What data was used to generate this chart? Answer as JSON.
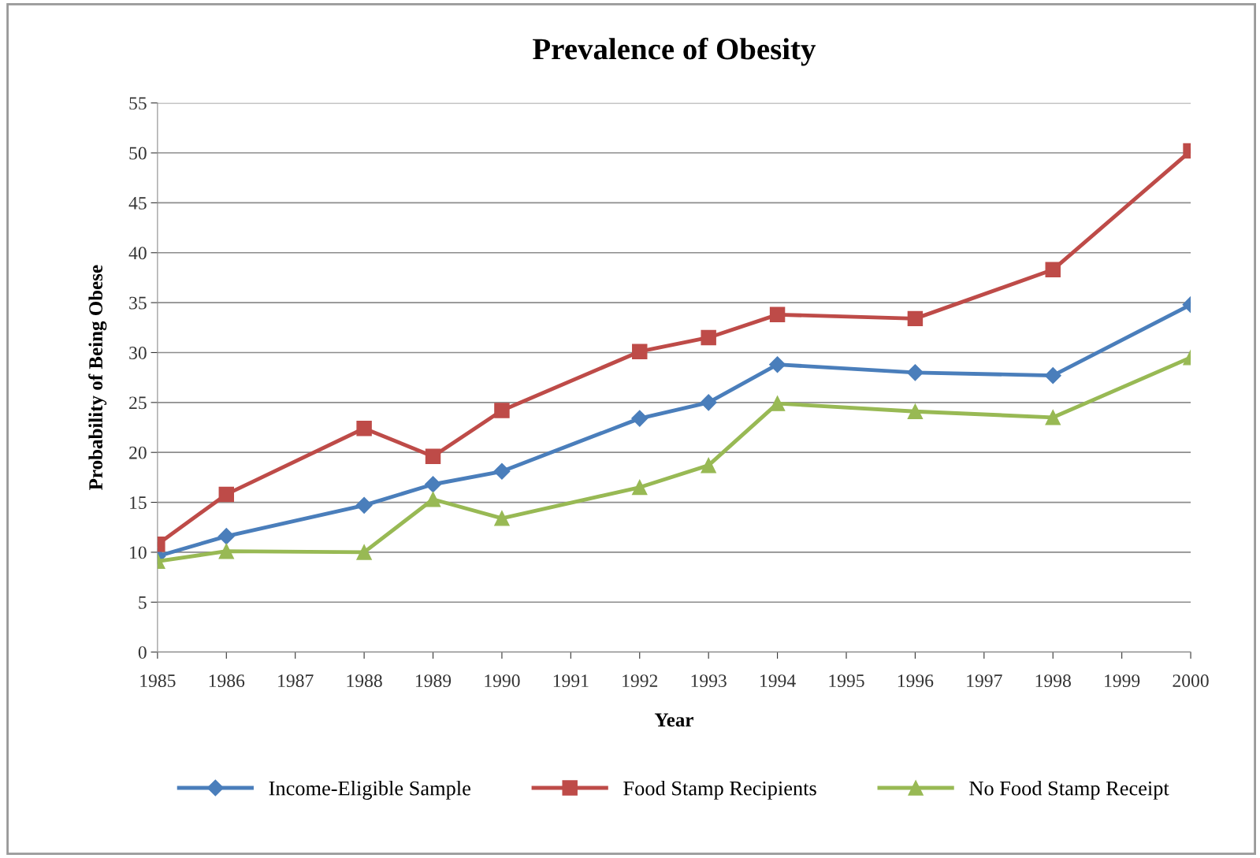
{
  "chart_data": {
    "type": "line",
    "title": "Prevalence of Obesity",
    "xlabel": "Year",
    "ylabel": "Probability of Being Obese",
    "x": [
      1985,
      1986,
      1988,
      1989,
      1990,
      1992,
      1993,
      1994,
      1996,
      1998,
      2000
    ],
    "series": [
      {
        "name": "Income-Eligible Sample",
        "color": "#4a7ebb",
        "marker": "diamond",
        "values": [
          9.6,
          11.6,
          14.7,
          16.8,
          18.1,
          23.4,
          25.0,
          28.8,
          28.0,
          27.7,
          34.8
        ]
      },
      {
        "name": "Food Stamp Recipients",
        "color": "#be4b48",
        "marker": "square",
        "values": [
          10.8,
          15.8,
          22.4,
          19.6,
          24.2,
          30.1,
          31.5,
          33.8,
          33.4,
          38.3,
          50.2
        ]
      },
      {
        "name": "No Food Stamp Receipt",
        "color": "#98b954",
        "marker": "triangle",
        "values": [
          9.1,
          10.1,
          10.0,
          15.3,
          13.4,
          16.5,
          18.7,
          24.9,
          24.1,
          23.5,
          29.5
        ]
      }
    ],
    "xlim": [
      1985,
      2000
    ],
    "xticks": [
      1985,
      1986,
      1987,
      1988,
      1989,
      1990,
      1991,
      1992,
      1993,
      1994,
      1995,
      1996,
      1997,
      1998,
      1999,
      2000
    ],
    "ylim": [
      0,
      55
    ],
    "yticks": [
      0,
      5,
      10,
      15,
      20,
      25,
      30,
      35,
      40,
      45,
      50,
      55
    ],
    "grid": "y",
    "legend": "bottom",
    "line_style": "solid"
  }
}
